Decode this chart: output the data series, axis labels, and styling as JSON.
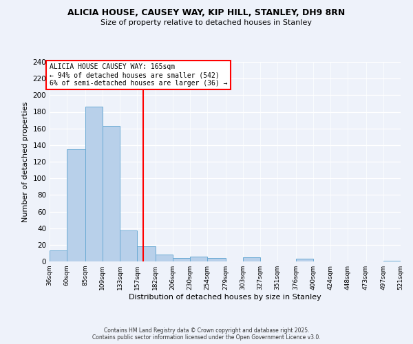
{
  "title1": "ALICIA HOUSE, CAUSEY WAY, KIP HILL, STANLEY, DH9 8RN",
  "title2": "Size of property relative to detached houses in Stanley",
  "xlabel": "Distribution of detached houses by size in Stanley",
  "ylabel": "Number of detached properties",
  "bar_edges": [
    36,
    60,
    85,
    109,
    133,
    157,
    182,
    206,
    230,
    254,
    279,
    303,
    327,
    351,
    376,
    400,
    424,
    448,
    473,
    497,
    521
  ],
  "bar_heights": [
    13,
    135,
    186,
    163,
    37,
    18,
    8,
    4,
    6,
    4,
    0,
    5,
    0,
    0,
    3,
    0,
    0,
    0,
    0,
    1
  ],
  "bar_color": "#b8d0ea",
  "bar_edgecolor": "#6aaad4",
  "ref_line_x": 165,
  "ref_line_color": "red",
  "annotation_title": "ALICIA HOUSE CAUSEY WAY: 165sqm",
  "annotation_line1": "← 94% of detached houses are smaller (542)",
  "annotation_line2": "6% of semi-detached houses are larger (36) →",
  "annotation_box_color": "white",
  "annotation_box_edgecolor": "red",
  "ylim": [
    0,
    240
  ],
  "yticks": [
    0,
    20,
    40,
    60,
    80,
    100,
    120,
    140,
    160,
    180,
    200,
    220,
    240
  ],
  "footer1": "Contains HM Land Registry data © Crown copyright and database right 2025.",
  "footer2": "Contains public sector information licensed under the Open Government Licence v3.0.",
  "bg_color": "#eef2fa"
}
